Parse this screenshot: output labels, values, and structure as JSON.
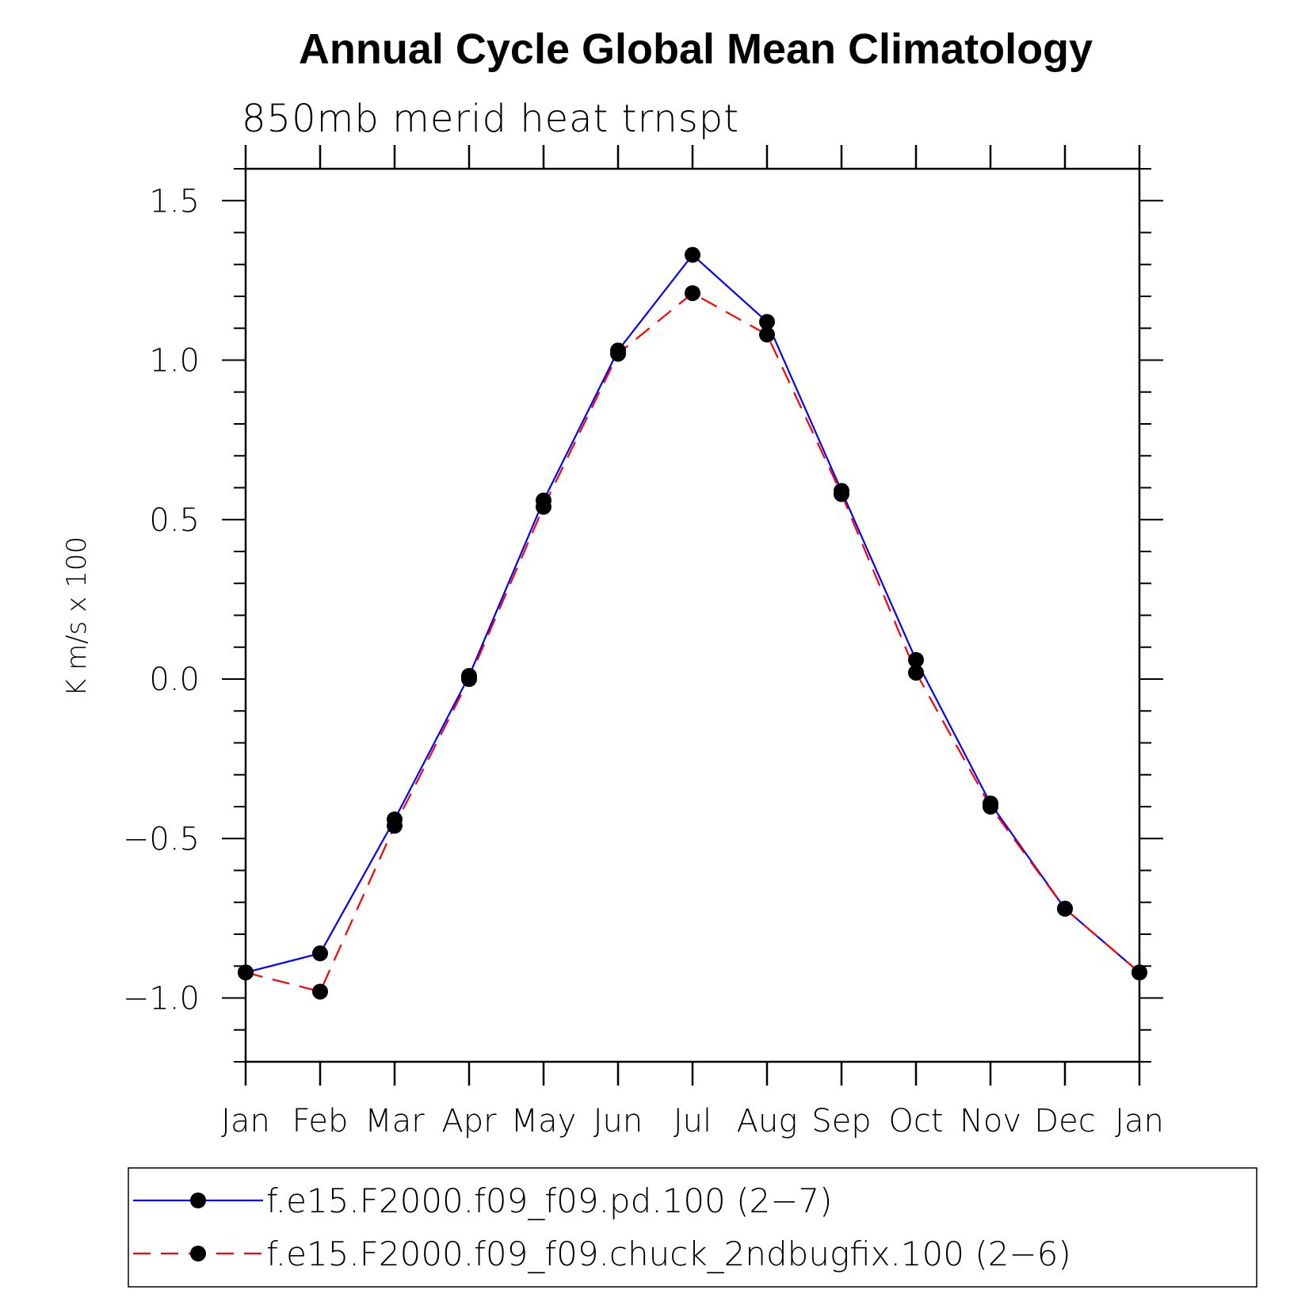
{
  "chart_data": {
    "type": "line",
    "title": "Annual Cycle Global Mean Climatology",
    "subtitle": "850mb merid heat trnspt",
    "ylabel": "K m/s x 100",
    "xlabel": "",
    "categories": [
      "Jan",
      "Feb",
      "Mar",
      "Apr",
      "May",
      "Jun",
      "Jul",
      "Aug",
      "Sep",
      "Oct",
      "Nov",
      "Dec",
      "Jan"
    ],
    "ylim": [
      -1.2,
      1.6
    ],
    "yticks": [
      -1.0,
      -0.5,
      0.0,
      0.5,
      1.0,
      1.5
    ],
    "ytick_labels": [
      "−1.0",
      "−0.5",
      "0.0",
      "0.5",
      "1.0",
      "1.5"
    ],
    "grid": false,
    "legend_position": "bottom",
    "series": [
      {
        "name": "f.e15.F2000.f09_f09.pd.100 (2−7)",
        "color": "#0000ff",
        "dash": "solid",
        "marker": "filled-circle",
        "values": [
          -0.92,
          -0.86,
          -0.44,
          0.01,
          0.56,
          1.03,
          1.33,
          1.12,
          0.59,
          0.06,
          -0.39,
          -0.72,
          -0.92
        ]
      },
      {
        "name": "f.e15.F2000.f09_f09.chuck_2ndbugfix.100 (2−6)",
        "color": "#ff0000",
        "dash": "dashed",
        "marker": "filled-circle",
        "values": [
          -0.92,
          -0.98,
          -0.46,
          0.0,
          0.54,
          1.02,
          1.21,
          1.08,
          0.58,
          0.02,
          -0.4,
          -0.72,
          -0.92
        ]
      }
    ]
  }
}
